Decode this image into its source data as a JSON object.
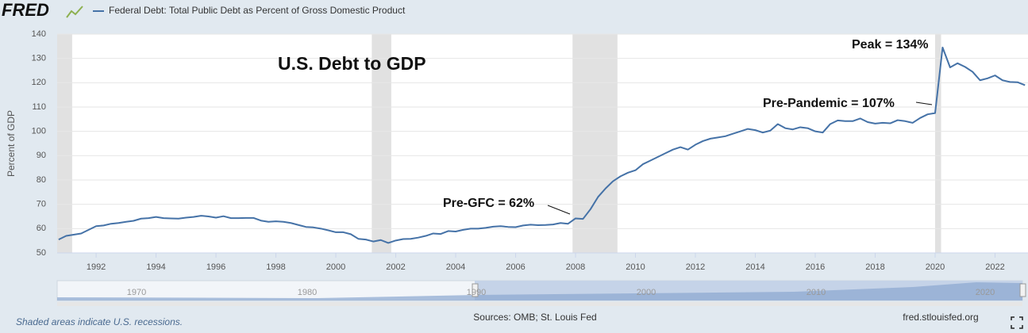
{
  "chart_data": {
    "type": "line",
    "logo": "FRED",
    "series_title": "Federal Debt: Total Public Debt as Percent of Gross Domestic Product",
    "title": "U.S. Debt to GDP",
    "ylabel": "Percent of GDP",
    "color": "#4572a7",
    "recession_color": "#e1e1e1",
    "grid": true,
    "annotations": [
      "Peak = 134%",
      "Pre-Pandemic = 107%",
      "Pre-GFC = 62%"
    ],
    "recessions": [
      [
        1990.6,
        1991.2
      ],
      [
        2001.2,
        2001.85
      ],
      [
        2007.9,
        2009.4
      ],
      [
        2020.0,
        2020.2
      ]
    ],
    "x": [
      1990.75,
      1991,
      1991.25,
      1991.5,
      1991.75,
      1992,
      1992.25,
      1992.5,
      1992.75,
      1993,
      1993.25,
      1993.5,
      1993.75,
      1994,
      1994.25,
      1994.5,
      1994.75,
      1995,
      1995.25,
      1995.5,
      1995.75,
      1996,
      1996.25,
      1996.5,
      1996.75,
      1997,
      1997.25,
      1997.5,
      1997.75,
      1998,
      1998.25,
      1998.5,
      1998.75,
      1999,
      1999.25,
      1999.5,
      1999.75,
      2000,
      2000.25,
      2000.5,
      2000.75,
      2001,
      2001.25,
      2001.5,
      2001.75,
      2002,
      2002.25,
      2002.5,
      2002.75,
      2003,
      2003.25,
      2003.5,
      2003.75,
      2004,
      2004.25,
      2004.5,
      2004.75,
      2005,
      2005.25,
      2005.5,
      2005.75,
      2006,
      2006.25,
      2006.5,
      2006.75,
      2007,
      2007.25,
      2007.5,
      2007.75,
      2008,
      2008.25,
      2008.5,
      2008.75,
      2009,
      2009.25,
      2009.5,
      2009.75,
      2010,
      2010.25,
      2010.5,
      2010.75,
      2011,
      2011.25,
      2011.5,
      2011.75,
      2012,
      2012.25,
      2012.5,
      2012.75,
      2013,
      2013.25,
      2013.5,
      2013.75,
      2014,
      2014.25,
      2014.5,
      2014.75,
      2015,
      2015.25,
      2015.5,
      2015.75,
      2016,
      2016.25,
      2016.5,
      2016.75,
      2017,
      2017.25,
      2017.5,
      2017.75,
      2018,
      2018.25,
      2018.5,
      2018.75,
      2019,
      2019.25,
      2019.5,
      2019.75,
      2020,
      2020.25,
      2020.5,
      2020.75,
      2021,
      2021.25,
      2021.5,
      2021.75,
      2022,
      2022.25,
      2022.5,
      2022.75,
      2023
    ],
    "values": [
      55.5,
      57,
      57.5,
      58,
      59.5,
      61,
      61.3,
      62,
      62.3,
      62.8,
      63.2,
      64.1,
      64.3,
      64.8,
      64.3,
      64.2,
      64.1,
      64.5,
      64.8,
      65.3,
      65,
      64.5,
      65.1,
      64.3,
      64.3,
      64.4,
      64.4,
      63.3,
      62.8,
      63,
      62.8,
      62.3,
      61.5,
      60.7,
      60.5,
      60,
      59.3,
      58.5,
      58.5,
      57.7,
      55.8,
      55.5,
      54.7,
      55.3,
      54.1,
      55.1,
      55.7,
      55.8,
      56.3,
      57,
      58,
      57.8,
      59,
      58.8,
      59.5,
      60,
      60,
      60.3,
      60.8,
      61,
      60.7,
      60.6,
      61.3,
      61.6,
      61.4,
      61.5,
      61.7,
      62.3,
      62,
      64.2,
      64,
      68,
      73,
      76.5,
      79.5,
      81.5,
      83,
      84,
      86.5,
      88,
      89.5,
      91,
      92.5,
      93.5,
      92.5,
      94.5,
      96,
      97,
      97.5,
      98,
      99,
      100,
      101,
      100.5,
      99.5,
      100.3,
      103,
      101.3,
      100.8,
      101.7,
      101.3,
      100,
      99.5,
      103,
      104.5,
      104.2,
      104.2,
      105.3,
      103.8,
      103.2,
      103.5,
      103.3,
      104.6,
      104.2,
      103.5,
      105.5,
      107,
      107.5,
      134.5,
      126.3,
      128,
      126.5,
      124.5,
      121,
      121.8,
      123,
      121,
      120.3,
      120.2,
      119
    ],
    "xlim": [
      1990.7,
      2023.1
    ],
    "xticks": [
      1992,
      1994,
      1996,
      1998,
      2000,
      2002,
      2004,
      2006,
      2008,
      2010,
      2012,
      2014,
      2016,
      2018,
      2020,
      2022
    ],
    "ylim": [
      50,
      140
    ],
    "yticks": [
      50,
      60,
      70,
      80,
      90,
      100,
      110,
      120,
      130,
      140
    ],
    "navigator_labels": [
      "1970",
      "1980",
      "1990",
      "2000",
      "2010",
      "2020"
    ],
    "footnote": "Shaded areas indicate U.S. recessions.",
    "source": "Sources: OMB; St. Louis Fed",
    "site": "fred.stlouisfed.org"
  }
}
